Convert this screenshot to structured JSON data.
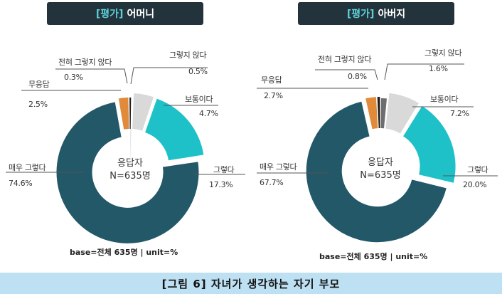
{
  "chart_data": [
    {
      "type": "pie",
      "title_tag": "[평가]",
      "title_name": "어머니",
      "center_label": "응답자",
      "center_n": "N=635명",
      "base_note": "base=전체 635명  |  unit=%",
      "slices": [
        {
          "label": "그렇지 않다",
          "value": 0.5,
          "value_text": "0.5%",
          "color": "#d9d9d9"
        },
        {
          "label": "보통이다",
          "value": 4.7,
          "value_text": "4.7%",
          "color": "#d9d9d9"
        },
        {
          "label": "그렇다",
          "value": 17.3,
          "value_text": "17.3%",
          "color": "#1fc1c8"
        },
        {
          "label": "매우 그렇다",
          "value": 74.6,
          "value_text": "74.6%",
          "color": "#235868"
        },
        {
          "label": "무응답",
          "value": 2.5,
          "value_text": "2.5%",
          "color": "#e08a3a"
        },
        {
          "label": "전혀 그렇지 않다",
          "value": 0.3,
          "value_text": "0.3%",
          "color": "#1a1a1a"
        }
      ]
    },
    {
      "type": "pie",
      "title_tag": "[평가]",
      "title_name": "아버지",
      "center_label": "응답자",
      "center_n": "N=635명",
      "base_note": "base=전체 635명  |  unit=%",
      "slices": [
        {
          "label": "그렇지 않다",
          "value": 1.6,
          "value_text": "1.6%",
          "color": "#6e6e6e"
        },
        {
          "label": "보통이다",
          "value": 7.2,
          "value_text": "7.2%",
          "color": "#d9d9d9"
        },
        {
          "label": "그렇다",
          "value": 20.0,
          "value_text": "20.0%",
          "color": "#1fc1c8"
        },
        {
          "label": "매우 그렇다",
          "value": 67.7,
          "value_text": "67.7%",
          "color": "#235868"
        },
        {
          "label": "무응답",
          "value": 2.7,
          "value_text": "2.7%",
          "color": "#e08a3a"
        },
        {
          "label": "전혀 그렇지 않다",
          "value": 0.8,
          "value_text": "0.8%",
          "color": "#1a1a1a"
        }
      ]
    }
  ],
  "caption": "[그림 6] 자녀가 생각하는 자기 부모"
}
